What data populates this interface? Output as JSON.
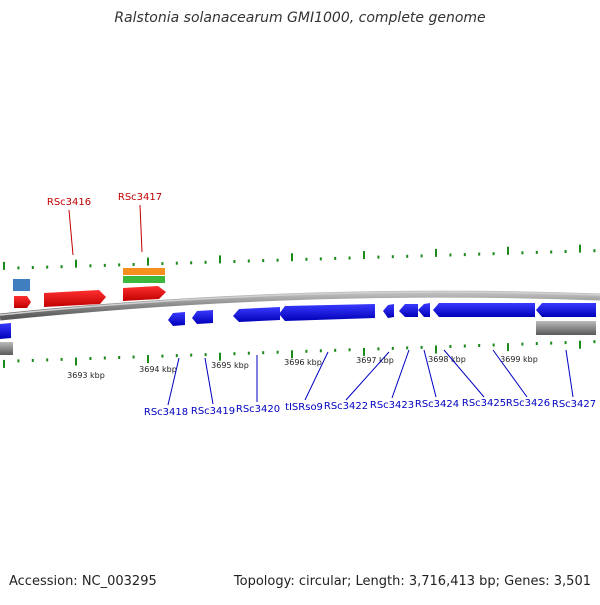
{
  "title": "Ralstonia solanacearum GMI1000, complete genome",
  "footer": {
    "accession": "Accession: NC_003295",
    "summary": "Topology: circular; Length: 3,716,413 bp; Genes: 3,501"
  },
  "colors": {
    "forward_gene": "#e00000",
    "reverse_gene": "#0000e0",
    "backbone": "#8c8c8c",
    "ticks": "#1a8a1a",
    "orange_feature": "#f5901e",
    "green_feature": "#3cb83c",
    "steelblue_feature": "#3f7fbf",
    "grey_feature": "#808080"
  },
  "scale": {
    "ticks": [
      {
        "label": "3693 kbp"
      },
      {
        "label": "3694 kbp"
      },
      {
        "label": "3695 kbp"
      },
      {
        "label": "3696 kbp"
      },
      {
        "label": "3697 kbp"
      },
      {
        "label": "3698 kbp"
      },
      {
        "label": "3699 kbp"
      }
    ]
  },
  "genes": {
    "forward": [
      {
        "label": "RSc3416"
      },
      {
        "label": "RSc3417"
      }
    ],
    "reverse": [
      {
        "label": "RSc3418"
      },
      {
        "label": "RSc3419"
      },
      {
        "label": "RSc3420"
      },
      {
        "label": "tISRso9"
      },
      {
        "label": "RSc3422"
      },
      {
        "label": "RSc3423"
      },
      {
        "label": "RSc3424"
      },
      {
        "label": "RSc3425"
      },
      {
        "label": "RSc3426"
      },
      {
        "label": "RSc3427"
      }
    ]
  }
}
